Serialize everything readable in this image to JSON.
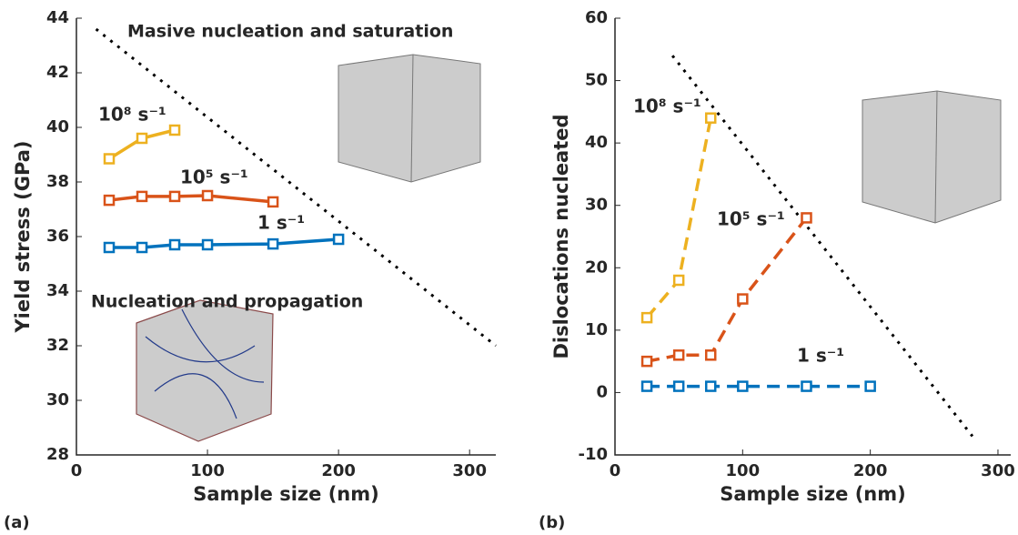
{
  "chart_data": [
    {
      "type": "line",
      "x_label": "Sample size (nm)",
      "y_label": "Yield stress (GPa)",
      "panel_label": "(a)",
      "line_style": "solid",
      "annotations": [
        "Masive nucleation and saturation",
        "Nucleation and propagation"
      ],
      "xlim": [
        0,
        320
      ],
      "xticks": [
        0,
        100,
        200,
        300
      ],
      "ylim": [
        28,
        44
      ],
      "yticks": [
        28,
        30,
        32,
        34,
        36,
        38,
        40,
        42,
        44
      ],
      "series": [
        {
          "name": "10⁸ s⁻¹",
          "color": "#EDB120",
          "x": [
            25,
            50,
            75
          ],
          "values": [
            38.85,
            39.6,
            39.9
          ]
        },
        {
          "name": "10⁵ s⁻¹",
          "color": "#D95319",
          "x": [
            25,
            50,
            75,
            100,
            150
          ],
          "values": [
            37.33,
            37.47,
            37.47,
            37.5,
            37.27
          ]
        },
        {
          "name": "1 s⁻¹",
          "color": "#0072BD",
          "x": [
            25,
            50,
            75,
            100,
            150,
            200
          ],
          "values": [
            35.6,
            35.6,
            35.7,
            35.7,
            35.73,
            35.9
          ]
        }
      ],
      "reference_line": {
        "color": "#000000",
        "x": [
          15,
          320
        ],
        "values": [
          43.6,
          32
        ]
      }
    },
    {
      "type": "line",
      "x_label": "Sample size (nm)",
      "y_label": "Dislocations nucleated",
      "panel_label": "(b)",
      "line_style": "dashed",
      "xlim": [
        0,
        310
      ],
      "xticks": [
        0,
        100,
        200,
        300
      ],
      "ylim": [
        -10,
        60
      ],
      "yticks": [
        -10,
        0,
        10,
        20,
        30,
        40,
        50,
        60
      ],
      "series": [
        {
          "name": "10⁸ s⁻¹",
          "color": "#EDB120",
          "x": [
            25,
            50,
            75
          ],
          "values": [
            12,
            18,
            44
          ]
        },
        {
          "name": "10⁵ s⁻¹",
          "color": "#D95319",
          "x": [
            25,
            50,
            75,
            100,
            150
          ],
          "values": [
            5,
            6,
            6,
            15,
            28
          ]
        },
        {
          "name": "1 s⁻¹",
          "color": "#0072BD",
          "x": [
            25,
            50,
            75,
            100,
            150,
            200
          ],
          "values": [
            1,
            1,
            1,
            1,
            1,
            1
          ]
        }
      ],
      "reference_line": {
        "color": "#000000",
        "x": [
          45,
          280
        ],
        "values": [
          54,
          -7
        ]
      }
    }
  ]
}
